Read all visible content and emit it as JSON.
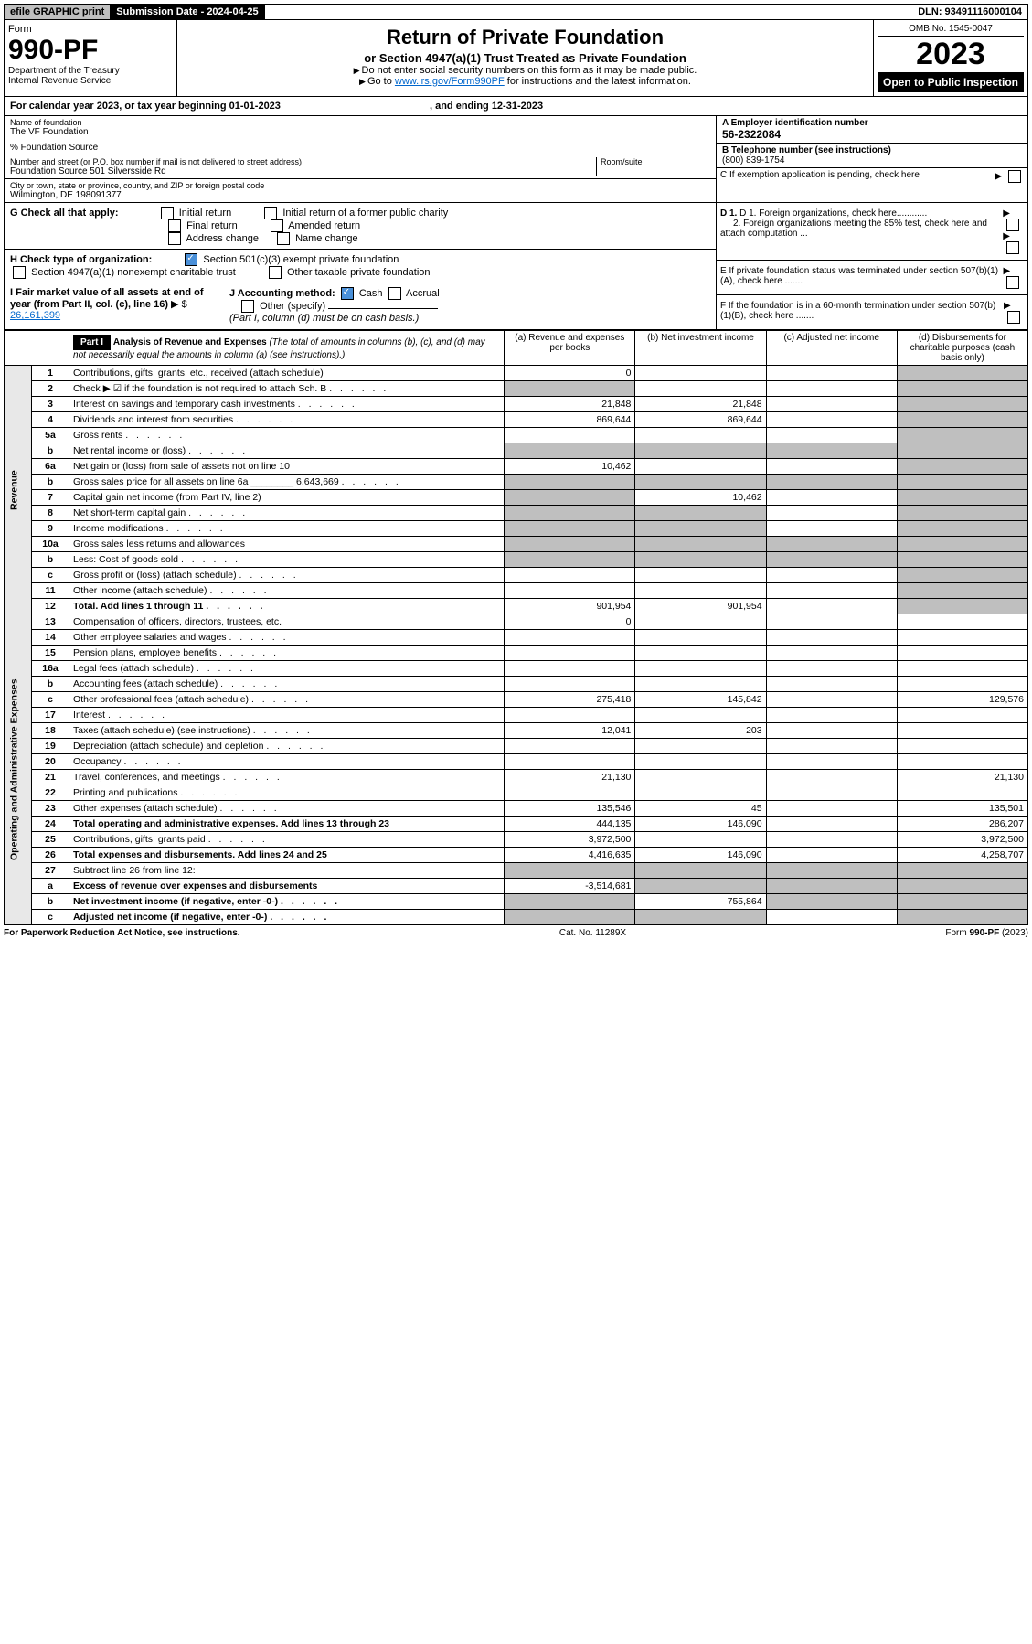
{
  "top": {
    "efile": "efile GRAPHIC print",
    "sub_label": "Submission Date - 2024-04-25",
    "dln": "DLN: 93491116000104"
  },
  "hdr": {
    "form": "Form",
    "num": "990-PF",
    "dept": "Department of the Treasury",
    "irs": "Internal Revenue Service",
    "title": "Return of Private Foundation",
    "subtitle": "or Section 4947(a)(1) Trust Treated as Private Foundation",
    "instr1": "Do not enter social security numbers on this form as it may be made public.",
    "instr2": "Go to ",
    "instr2_link": "www.irs.gov/Form990PF",
    "instr2_tail": " for instructions and the latest information.",
    "omb": "OMB No. 1545-0047",
    "year": "2023",
    "open": "Open to Public Inspection"
  },
  "cal": {
    "text": "For calendar year 2023, or tax year beginning 01-01-2023",
    "end": ", and ending 12-31-2023"
  },
  "name": {
    "lbl": "Name of foundation",
    "val": "The VF Foundation",
    "fsrc": "% Foundation Source"
  },
  "addr": {
    "lbl": "Number and street (or P.O. box number if mail is not delivered to street address)",
    "val": "Foundation Source 501 Silversside Rd",
    "room_lbl": "Room/suite"
  },
  "city": {
    "lbl": "City or town, state or province, country, and ZIP or foreign postal code",
    "val": "Wilmington, DE  198091377"
  },
  "ein": {
    "lbl": "A Employer identification number",
    "val": "56-2322084"
  },
  "tel": {
    "lbl": "B Telephone number (see instructions)",
    "val": "(800) 839-1754"
  },
  "c": "C If exemption application is pending, check here",
  "d1": "D 1. Foreign organizations, check here............",
  "d2": "2. Foreign organizations meeting the 85% test, check here and attach computation ...",
  "e": "E If private foundation status was terminated under section 507(b)(1)(A), check here .......",
  "f": "F If the foundation is in a 60-month termination under section 507(b)(1)(B), check here .......",
  "g": {
    "lbl": "G Check all that apply:",
    "items": [
      "Initial return",
      "Initial return of a former public charity",
      "Final return",
      "Amended return",
      "Address change",
      "Name change"
    ]
  },
  "h": {
    "lbl": "H Check type of organization:",
    "s501": "Section 501(c)(3) exempt private foundation",
    "s4947": "Section 4947(a)(1) nonexempt charitable trust",
    "other": "Other taxable private foundation"
  },
  "i": {
    "lbl": "I Fair market value of all assets at end of year (from Part II, col. (c), line 16)",
    "val": "26,161,399"
  },
  "j": {
    "lbl": "J Accounting method:",
    "cash": "Cash",
    "accrual": "Accrual",
    "other": "Other (specify)",
    "note": "(Part I, column (d) must be on cash basis.)"
  },
  "part1": {
    "hdr": "Part I",
    "title": "Analysis of Revenue and Expenses",
    "note": "(The total of amounts in columns (b), (c), and (d) may not necessarily equal the amounts in column (a) (see instructions).)",
    "cols": {
      "a": "(a) Revenue and expenses per books",
      "b": "(b) Net investment income",
      "c": "(c) Adjusted net income",
      "d": "(d) Disbursements for charitable purposes (cash basis only)"
    }
  },
  "side": {
    "rev": "Revenue",
    "exp": "Operating and Administrative Expenses"
  },
  "rows": [
    {
      "n": "1",
      "d": "Contributions, gifts, grants, etc., received (attach schedule)",
      "a": "0"
    },
    {
      "n": "2",
      "d": "Check ▶ ☑ if the foundation is not required to attach Sch. B",
      "dots": true,
      "grey_a": true
    },
    {
      "n": "3",
      "d": "Interest on savings and temporary cash investments",
      "a": "21,848",
      "b": "21,848"
    },
    {
      "n": "4",
      "d": "Dividends and interest from securities",
      "a": "869,644",
      "b": "869,644"
    },
    {
      "n": "5a",
      "d": "Gross rents"
    },
    {
      "n": "b",
      "d": "Net rental income or (loss)",
      "inset": true,
      "grey_all": true
    },
    {
      "n": "6a",
      "d": "Net gain or (loss) from sale of assets not on line 10",
      "a": "10,462"
    },
    {
      "n": "b",
      "d": "Gross sales price for all assets on line 6a",
      "val6b": "6,643,669",
      "grey_all": true
    },
    {
      "n": "7",
      "d": "Capital gain net income (from Part IV, line 2)",
      "grey_a": true,
      "b": "10,462"
    },
    {
      "n": "8",
      "d": "Net short-term capital gain",
      "grey_ab": true
    },
    {
      "n": "9",
      "d": "Income modifications",
      "grey_ab": true
    },
    {
      "n": "10a",
      "d": "Gross sales less returns and allowances",
      "inset": true,
      "grey_all": true
    },
    {
      "n": "b",
      "d": "Less: Cost of goods sold",
      "inset": true,
      "grey_all": true
    },
    {
      "n": "c",
      "d": "Gross profit or (loss) (attach schedule)"
    },
    {
      "n": "11",
      "d": "Other income (attach schedule)"
    },
    {
      "n": "12",
      "d": "Total. Add lines 1 through 11",
      "bold": true,
      "a": "901,954",
      "b": "901,954"
    },
    {
      "n": "13",
      "d": "Compensation of officers, directors, trustees, etc.",
      "a": "0"
    },
    {
      "n": "14",
      "d": "Other employee salaries and wages"
    },
    {
      "n": "15",
      "d": "Pension plans, employee benefits"
    },
    {
      "n": "16a",
      "d": "Legal fees (attach schedule)"
    },
    {
      "n": "b",
      "d": "Accounting fees (attach schedule)"
    },
    {
      "n": "c",
      "d": "Other professional fees (attach schedule)",
      "a": "275,418",
      "b": "145,842",
      "dd": "129,576"
    },
    {
      "n": "17",
      "d": "Interest"
    },
    {
      "n": "18",
      "d": "Taxes (attach schedule) (see instructions)",
      "a": "12,041",
      "b": "203"
    },
    {
      "n": "19",
      "d": "Depreciation (attach schedule) and depletion"
    },
    {
      "n": "20",
      "d": "Occupancy"
    },
    {
      "n": "21",
      "d": "Travel, conferences, and meetings",
      "a": "21,130",
      "dd": "21,130"
    },
    {
      "n": "22",
      "d": "Printing and publications"
    },
    {
      "n": "23",
      "d": "Other expenses (attach schedule)",
      "a": "135,546",
      "b": "45",
      "dd": "135,501"
    },
    {
      "n": "24",
      "d": "Total operating and administrative expenses. Add lines 13 through 23",
      "bold": true,
      "a": "444,135",
      "b": "146,090",
      "dd": "286,207"
    },
    {
      "n": "25",
      "d": "Contributions, gifts, grants paid",
      "a": "3,972,500",
      "dd": "3,972,500"
    },
    {
      "n": "26",
      "d": "Total expenses and disbursements. Add lines 24 and 25",
      "bold": true,
      "a": "4,416,635",
      "b": "146,090",
      "dd": "4,258,707"
    },
    {
      "n": "27",
      "d": "Subtract line 26 from line 12:",
      "grey_all_r": true
    },
    {
      "n": "a",
      "d": "Excess of revenue over expenses and disbursements",
      "bold": true,
      "a": "-3,514,681",
      "grey_bcd": true
    },
    {
      "n": "b",
      "d": "Net investment income (if negative, enter -0-)",
      "bold": true,
      "grey_a": true,
      "b": "755,864",
      "grey_cd": true
    },
    {
      "n": "c",
      "d": "Adjusted net income (if negative, enter -0-)",
      "bold": true,
      "grey_ab": true,
      "grey_d": true
    }
  ],
  "footer": {
    "left": "For Paperwork Reduction Act Notice, see instructions.",
    "mid": "Cat. No. 11289X",
    "right": "Form 990-PF (2023)"
  }
}
